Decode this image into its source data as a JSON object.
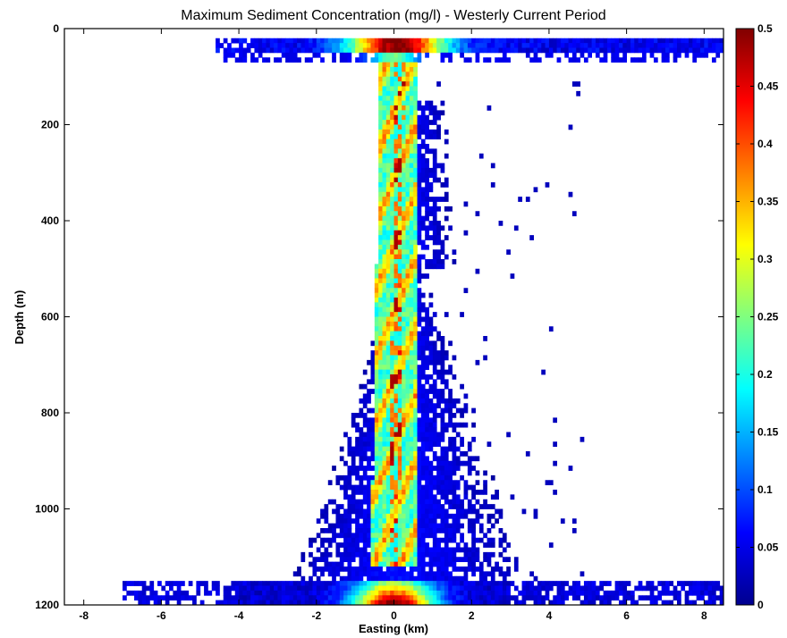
{
  "chart_data": {
    "type": "heatmap",
    "title": "Maximum Sediment Concentration (mg/l) - Westerly Current Period",
    "xlabel": "Easting (km)",
    "ylabel": "Depth (m)",
    "xlim": [
      -8.5,
      8.5
    ],
    "ylim": [
      0,
      1200
    ],
    "y_reversed": true,
    "xticks": [
      -8,
      -6,
      -4,
      -2,
      0,
      2,
      4,
      6,
      8
    ],
    "yticks": [
      0,
      200,
      400,
      600,
      800,
      1000,
      1200
    ],
    "xtick_labels": [
      "-8",
      "-6",
      "-4",
      "-2",
      "0",
      "2",
      "4",
      "6",
      "8"
    ],
    "ytick_labels": [
      "0",
      "200",
      "400",
      "600",
      "800",
      "1000",
      "1200"
    ],
    "colorbar": {
      "min": 0,
      "max": 0.5,
      "ticks": [
        0,
        0.05,
        0.1,
        0.15,
        0.2,
        0.25,
        0.3,
        0.35,
        0.4,
        0.45,
        0.5
      ],
      "tick_labels": [
        "0",
        "0.05",
        "0.1",
        "0.15",
        "0.2",
        "0.25",
        "0.3",
        "0.35",
        "0.4",
        "0.45",
        "0.5"
      ],
      "colormap": "jet"
    },
    "regions": [
      {
        "name": "surface layer",
        "depth_range": [
          25,
          50
        ],
        "easting_range": [
          -4.6,
          8.5
        ],
        "peak": 0.45
      },
      {
        "name": "central plume",
        "depth_range": [
          50,
          1120
        ],
        "easting_range": [
          -0.3,
          0.6
        ],
        "peak": 0.45
      },
      {
        "name": "plume fringe",
        "depth_range": [
          50,
          1160
        ],
        "easting_range": [
          -2.5,
          3.5
        ],
        "peak": 0.05
      },
      {
        "name": "bottom layer",
        "depth_range": [
          1150,
          1200
        ],
        "easting_range": [
          -7.0,
          8.5
        ],
        "peak": 0.5
      }
    ],
    "grid": false,
    "legend": "none"
  }
}
